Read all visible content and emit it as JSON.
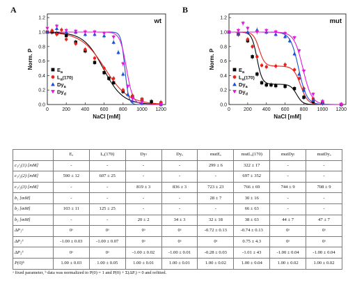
{
  "chart_data": [
    {
      "type": "scatter",
      "panel": "A",
      "title": "wt",
      "xlabel": "NaCl [mM]",
      "ylabel": "Norm. P",
      "xlim": [
        0,
        1250
      ],
      "ylim": [
        0,
        1.25
      ],
      "xticks": [
        0,
        200,
        400,
        600,
        800,
        1000,
        1200
      ],
      "yticks": [
        0.0,
        0.2,
        0.4,
        0.6,
        0.8,
        1.0,
        1.2
      ],
      "legend_position": "bottom-left",
      "series": [
        {
          "name": "E",
          "sub": "a",
          "color": "#000000",
          "marker": "square",
          "x": [
            0,
            50,
            100,
            200,
            300,
            400,
            500,
            600,
            650,
            700,
            800,
            900,
            1000,
            1100,
            1200
          ],
          "y": [
            1.0,
            1.0,
            0.98,
            0.95,
            0.86,
            0.74,
            0.58,
            0.44,
            0.36,
            0.3,
            0.18,
            0.11,
            0.07,
            0.04,
            0.02
          ]
        },
        {
          "name": "L",
          "sub": "a",
          "tag": "(170)",
          "color": "#e8211b",
          "marker": "circle",
          "x": [
            0,
            50,
            100,
            150,
            200,
            300,
            400,
            500,
            600,
            700,
            800,
            900,
            1000,
            1200
          ],
          "y": [
            1.0,
            1.02,
            0.97,
            1.03,
            0.9,
            0.84,
            0.76,
            0.64,
            0.5,
            0.36,
            0.2,
            0.12,
            0.07,
            0.03
          ]
        },
        {
          "name": "Dy",
          "sub": "a",
          "color": "#1f4fd0",
          "marker": "triangle-up",
          "x": [
            0,
            100,
            200,
            300,
            400,
            500,
            600,
            700,
            750,
            800,
            850,
            900,
            1000,
            1200
          ],
          "y": [
            1.0,
            1.05,
            1.0,
            1.0,
            0.97,
            0.97,
            0.95,
            0.86,
            0.72,
            0.42,
            0.14,
            0.05,
            0.02,
            0.0
          ]
        },
        {
          "name": "Dy",
          "sub": "d",
          "color": "#e01bd8",
          "marker": "triangle-down",
          "x": [
            0,
            100,
            200,
            300,
            400,
            500,
            600,
            700,
            800,
            850,
            900,
            1000,
            1200
          ],
          "y": [
            1.05,
            1.08,
            1.02,
            1.01,
            1.0,
            1.0,
            0.98,
            0.93,
            0.56,
            0.25,
            0.08,
            0.03,
            0.0
          ]
        }
      ]
    },
    {
      "type": "scatter",
      "panel": "B",
      "title": "mut",
      "xlabel": "NaCl [mM]",
      "ylabel": "Norm. P",
      "xlim": [
        0,
        1250
      ],
      "ylim": [
        0,
        1.25
      ],
      "xticks": [
        0,
        200,
        400,
        600,
        800,
        1000,
        1200
      ],
      "yticks": [
        0.0,
        0.2,
        0.4,
        0.6,
        0.8,
        1.0,
        1.2
      ],
      "legend_position": "bottom-left",
      "series": [
        {
          "name": "E",
          "sub": "a",
          "color": "#000000",
          "marker": "square",
          "x": [
            0,
            100,
            200,
            250,
            300,
            350,
            400,
            450,
            500,
            600,
            700,
            800,
            900,
            1000,
            1200
          ],
          "y": [
            1.0,
            0.97,
            0.88,
            0.66,
            0.42,
            0.3,
            0.27,
            0.27,
            0.26,
            0.25,
            0.22,
            0.1,
            0.04,
            0.02,
            0.0
          ]
        },
        {
          "name": "L",
          "sub": "a",
          "tag": "(170)",
          "color": "#e8211b",
          "marker": "circle",
          "x": [
            0,
            100,
            200,
            250,
            300,
            350,
            400,
            500,
            600,
            700,
            750,
            800,
            900,
            1000,
            1200
          ],
          "y": [
            1.0,
            0.97,
            0.9,
            0.8,
            0.66,
            0.54,
            0.52,
            0.53,
            0.55,
            0.48,
            0.36,
            0.22,
            0.08,
            0.04,
            0.0
          ]
        },
        {
          "name": "Dy",
          "sub": "a",
          "color": "#1f4fd0",
          "marker": "triangle-up",
          "x": [
            0,
            100,
            200,
            300,
            400,
            500,
            600,
            650,
            700,
            750,
            800,
            900,
            1000,
            1200
          ],
          "y": [
            1.0,
            0.98,
            1.0,
            1.03,
            1.0,
            0.97,
            0.94,
            0.88,
            0.7,
            0.42,
            0.2,
            0.06,
            0.02,
            0.0
          ]
        },
        {
          "name": "Dy",
          "sub": "d",
          "color": "#e01bd8",
          "marker": "triangle-down",
          "x": [
            0,
            100,
            150,
            200,
            300,
            400,
            500,
            600,
            700,
            750,
            800,
            900,
            1000,
            1200
          ],
          "y": [
            1.0,
            1.02,
            1.12,
            1.05,
            1.0,
            1.02,
            1.0,
            0.98,
            0.92,
            0.74,
            0.46,
            0.14,
            0.04,
            0.0
          ]
        }
      ]
    }
  ],
  "table": {
    "headers": [
      "",
      "Eₐ",
      "Lₐ(170)",
      "Dyₗ",
      "Dyₔ",
      "mutEₐ",
      "mutLₐ(170)",
      "mutDyₗ",
      "mutDyₔ"
    ],
    "rows": [
      [
        "c₁/₂(1) [mM]",
        "-",
        "-",
        "-",
        "-",
        "299 ± 6",
        "322 ± 17",
        "-",
        "-"
      ],
      [
        "c₁/₂(2) [mM]",
        "590 ± 12",
        "607 ± 25",
        "-",
        "-",
        "-",
        "697 ± 352",
        "-",
        "-"
      ],
      [
        "c₁/₂(3) [mM]",
        "-",
        "-",
        "819 ± 3",
        "836 ± 3",
        "723 ± 23",
        "766 ± 69",
        "744 ± 9",
        "708 ± 9"
      ],
      [
        "b₁ [mM]",
        "-",
        "-",
        "-",
        "-",
        "28 ± 7",
        "30 ± 16",
        "-",
        "-"
      ],
      [
        "b₂ [mM]",
        "103 ± 11",
        "125 ± 25",
        "-",
        "-",
        "-",
        "66 ± 63",
        "-",
        "-"
      ],
      [
        "b₃ [mM]",
        "-",
        "-",
        "20 ± 2",
        "34 ± 3",
        "32 ± 18",
        "38 ± 63",
        "44 ± 7",
        "47 ± 7"
      ],
      [
        "ΔP₁ᵃ",
        "0ᵃ",
        "0ᵃ",
        "0ᵃ",
        "0ᵃ",
        "-0.72 ± 0.13",
        "-0.74 ± 0.13",
        "0ᵃ",
        "0ᵃ"
      ],
      [
        "ΔP₂ᵇ",
        "-1.00 ± 0.03",
        "-1.00 ± 0.07",
        "0ᵃ",
        "0ᵃ",
        "0ᵃ",
        "0.75 ± 4.3",
        "0ᵃ",
        "0ᵃ"
      ],
      [
        "ΔP₃ᵇ",
        "0ᵃ",
        "0ᵃ",
        "-1.00 ± 0.02",
        "-1.00 ± 0.01",
        "-0.28 ± 0.03",
        "-1.01 ± 43",
        "-1.00 ± 0.04",
        "-1.00 ± 0.04"
      ],
      [
        "P(0)ᵇ",
        "1.00 ± 0.03",
        "1.00 ± 0.05",
        "1.00 ± 0.01",
        "1.00 ± 0.01",
        "1.00 ± 0.02",
        "1.00 ± 0.04",
        "1.00 ± 0.02",
        "1.00 ± 0.02"
      ]
    ]
  },
  "footnote": "ᵃ fixed parameter, ᵇ data was normalized to P(0) = 1 and P(0) + Σ(ΔPᵢ) = 0 and refitted."
}
